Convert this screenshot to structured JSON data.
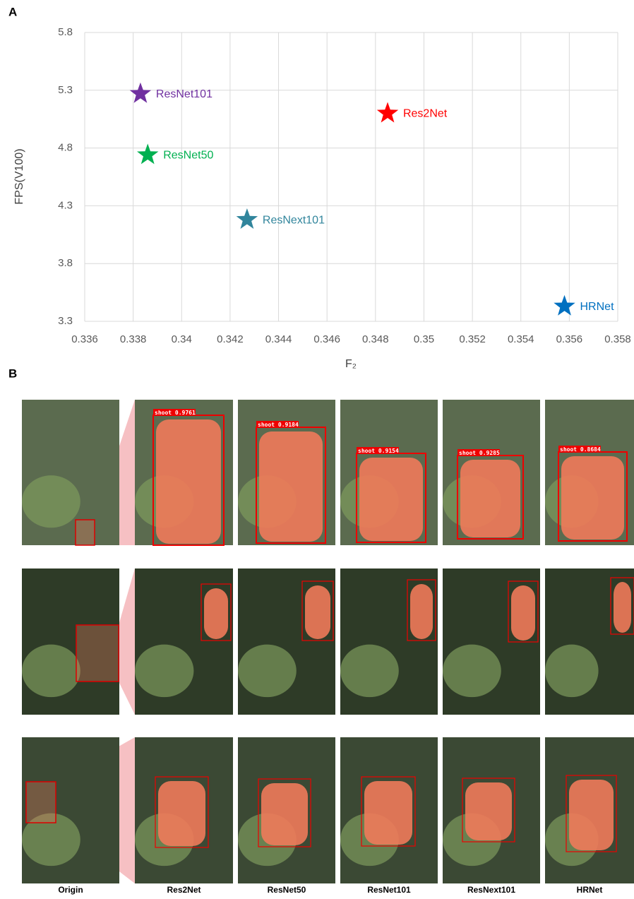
{
  "panels": [
    "A",
    "B"
  ],
  "chart_data": {
    "type": "scatter",
    "xlabel": "F₂",
    "ylabel": "FPS(V100)",
    "series": [
      {
        "name": "ResNet101",
        "color": "#7030a0",
        "x": [
          0.3383
        ],
        "values": [
          5.27
        ]
      },
      {
        "name": "Res2Net",
        "color": "#ff0000",
        "x": [
          0.3485
        ],
        "values": [
          5.1
        ]
      },
      {
        "name": "ResNet50",
        "color": "#00b050",
        "x": [
          0.3386
        ],
        "values": [
          4.74
        ]
      },
      {
        "name": "ResNext101",
        "color": "#31859c",
        "x": [
          0.3427
        ],
        "values": [
          4.18
        ]
      },
      {
        "name": "HRNet",
        "color": "#0070c0",
        "x": [
          0.3558
        ],
        "values": [
          3.43
        ]
      }
    ],
    "xlim": [
      0.336,
      0.358
    ],
    "xticks": [
      0.336,
      0.338,
      0.34,
      0.342,
      0.344,
      0.346,
      0.348,
      0.35,
      0.352,
      0.354,
      0.356,
      0.358
    ],
    "ylim": [
      3.3,
      5.8
    ],
    "yticks": [
      3.3,
      3.8,
      4.3,
      4.8,
      5.3,
      5.8
    ],
    "grid": true
  },
  "figure_b": {
    "columns": [
      "Origin",
      "Res2Net",
      "ResNet50",
      "ResNet101",
      "ResNext101",
      "HRNet"
    ],
    "detections": [
      "shoot 0.9761",
      "shoot 0.9184",
      "shoot 0.9154",
      "shoot 0.9285",
      "shoot 0.8684"
    ]
  }
}
